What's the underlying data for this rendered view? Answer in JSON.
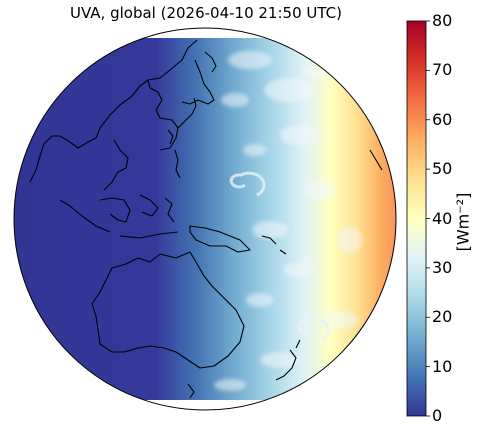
{
  "title": "UVA, global (2026-04-10 21:50 UTC)",
  "map": {
    "projection": "orthographic",
    "region_shown": "Asia, Australia, western Pacific Ocean",
    "quantity": "UVA"
  },
  "colorbar": {
    "label": "[Wm⁻²]",
    "min": 0,
    "max": 80,
    "ticks": [
      "0",
      "10",
      "20",
      "30",
      "40",
      "50",
      "60",
      "70",
      "80"
    ],
    "colormap": "RdYlBu_r",
    "colors": [
      "#313695",
      "#4575b4",
      "#74add1",
      "#abd9e9",
      "#e0f3f8",
      "#ffffbf",
      "#fee090",
      "#fdae61",
      "#f46d43",
      "#d73027",
      "#a50026"
    ]
  }
}
